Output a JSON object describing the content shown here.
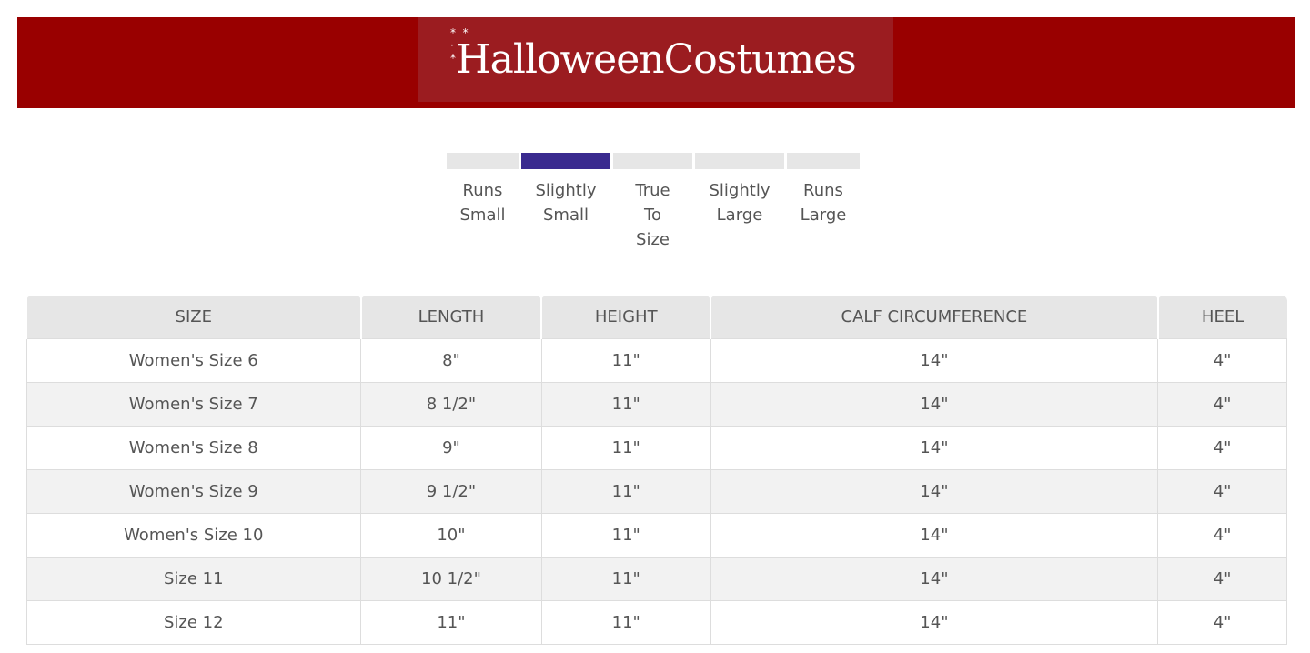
{
  "brand": {
    "logo_text": "HalloweenCostumes",
    "colors": {
      "banner": "#990000",
      "logo_bg": "#9b1c20",
      "fit_active": "#3a2a8f"
    }
  },
  "fit_scale": {
    "selected": "Slightly Small",
    "options": [
      {
        "label": "Runs\nSmall",
        "active": false
      },
      {
        "label": "Slightly\nSmall",
        "active": true
      },
      {
        "label": "True\nTo\nSize",
        "active": false
      },
      {
        "label": "Slightly\nLarge",
        "active": false
      },
      {
        "label": "Runs\nLarge",
        "active": false
      }
    ]
  },
  "table": {
    "headers": [
      "SIZE",
      "LENGTH",
      "HEIGHT",
      "CALF CIRCUMFERENCE",
      "HEEL"
    ],
    "rows": [
      [
        "Women's Size 6",
        "8\"",
        "11\"",
        "14\"",
        "4\""
      ],
      [
        "Women's Size 7",
        "8 1/2\"",
        "11\"",
        "14\"",
        "4\""
      ],
      [
        "Women's Size 8",
        "9\"",
        "11\"",
        "14\"",
        "4\""
      ],
      [
        "Women's Size 9",
        "9 1/2\"",
        "11\"",
        "14\"",
        "4\""
      ],
      [
        "Women's Size 10",
        "10\"",
        "11\"",
        "14\"",
        "4\""
      ],
      [
        "Size 11",
        "10 1/2\"",
        "11\"",
        "14\"",
        "4\""
      ],
      [
        "Size 12",
        "11\"",
        "11\"",
        "14\"",
        "4\""
      ]
    ]
  }
}
